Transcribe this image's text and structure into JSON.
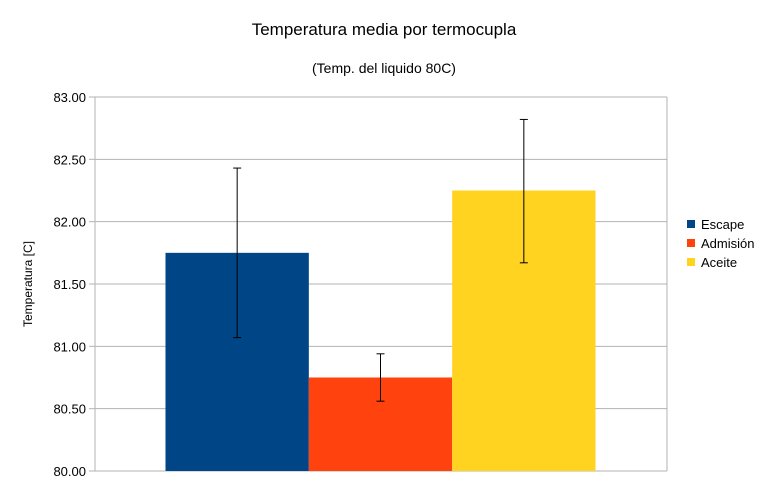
{
  "chart_data": {
    "type": "bar",
    "title": "Temperatura media por termocupla",
    "subtitle": "(Temp. del liquido 80C)",
    "xlabel": "",
    "ylabel": "Temperatura [C]",
    "ylim": [
      80.0,
      83.0
    ],
    "yticks": [
      "80.00",
      "80.50",
      "81.00",
      "81.50",
      "82.00",
      "82.50",
      "83.00"
    ],
    "grid": true,
    "legend_position": "right",
    "series": [
      {
        "name": "Escape",
        "value": 81.75,
        "error_low": 81.07,
        "error_high": 82.43,
        "color": "#004586"
      },
      {
        "name": "Admisión",
        "value": 80.75,
        "error_low": 80.56,
        "error_high": 80.94,
        "color": "#ff420e"
      },
      {
        "name": "Aceite",
        "value": 82.25,
        "error_low": 81.67,
        "error_high": 82.82,
        "color": "#ffd320"
      }
    ]
  }
}
